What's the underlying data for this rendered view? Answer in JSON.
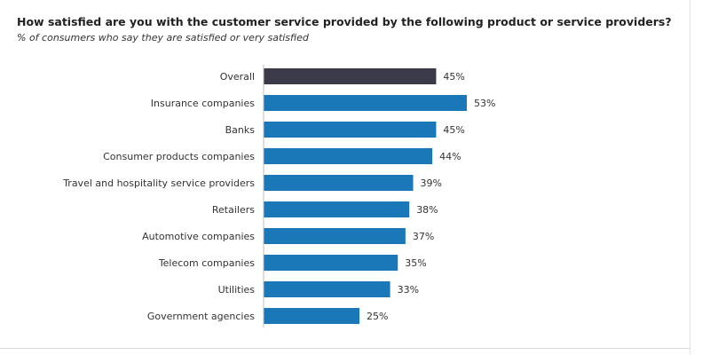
{
  "chart_data": {
    "type": "bar",
    "orientation": "horizontal",
    "title": "How satisfied are you with the customer service provided by the following product or service providers?",
    "subtitle": "% of consumers who say they are satisfied or very satisfied",
    "categories": [
      "Overall",
      "Insurance companies",
      "Banks",
      "Consumer products companies",
      "Travel and hospitality service providers",
      "Retailers",
      "Automotive companies",
      "Telecom companies",
      "Utilities",
      "Government agencies"
    ],
    "values": [
      45,
      53,
      45,
      44,
      39,
      38,
      37,
      35,
      33,
      25
    ],
    "value_suffix": "%",
    "xlim": [
      0,
      53
    ],
    "highlight_index": 0,
    "colors": {
      "highlight": "#3b3a49",
      "bar": "#1a77b8",
      "label": "#333333"
    },
    "grid": false,
    "legend": "none"
  }
}
